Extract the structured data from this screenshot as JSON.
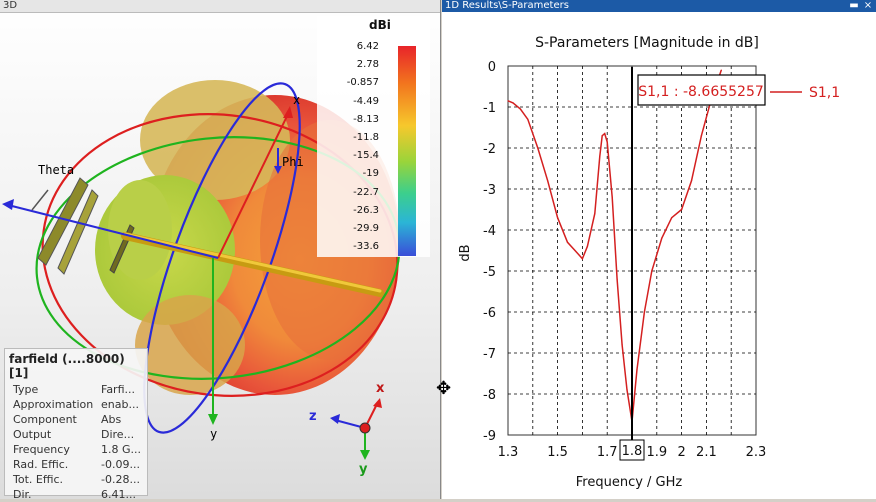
{
  "left_panel": {
    "title": "3D",
    "axis_labels": {
      "x": "x",
      "theta": "Theta",
      "phi": "Phi",
      "y": "y"
    },
    "triad_labels": {
      "x": "x",
      "y": "y",
      "z": "z"
    },
    "legend": {
      "unit": "dBi",
      "ticks": [
        "6.42",
        "2.78",
        "-0.857",
        "-4.49",
        "-8.13",
        "-11.8",
        "-15.4",
        "-19",
        "-22.7",
        "-26.3",
        "-29.9",
        "-33.6"
      ]
    },
    "info": {
      "header": "farfield (....8000) [1]",
      "rows": [
        {
          "key": "Type",
          "value": "Farfi..."
        },
        {
          "key": "Approximation",
          "value": "enab..."
        },
        {
          "key": "Component",
          "value": "Abs"
        },
        {
          "key": "Output",
          "value": "Dire..."
        },
        {
          "key": "Frequency",
          "value": "1.8 G..."
        },
        {
          "key": "Rad. Effic.",
          "value": "-0.09..."
        },
        {
          "key": "Tot. Effic.",
          "value": "-0.28..."
        },
        {
          "key": "Dir.",
          "value": "6.41..."
        }
      ]
    }
  },
  "right_panel": {
    "title": "1D Results\\S-Parameters",
    "window_buttons": {
      "minimize": "▬",
      "close": "×"
    },
    "marker_label": "S1,1 : -8.6655257",
    "marker_x_label": "1.8",
    "colors": {
      "trace": "#d42020",
      "marker": "#000000"
    }
  },
  "chart_data": {
    "type": "line",
    "title": "S-Parameters [Magnitude in dB]",
    "xlabel": "Frequency / GHz",
    "ylabel": "dB",
    "xlim": [
      1.3,
      2.3
    ],
    "ylim": [
      -9,
      0
    ],
    "x_ticks": [
      "1.3",
      "1.5",
      "1.7",
      "1.8",
      "1.9",
      "2",
      "2.1",
      "2.3"
    ],
    "y_ticks": [
      "0",
      "-1",
      "-2",
      "-3",
      "-4",
      "-5",
      "-6",
      "-7",
      "-8",
      "-9"
    ],
    "grid": true,
    "legend_position": "top-right",
    "series": [
      {
        "name": "S1,1",
        "x": [
          1.3,
          1.32,
          1.35,
          1.38,
          1.42,
          1.46,
          1.5,
          1.54,
          1.57,
          1.6,
          1.62,
          1.65,
          1.67,
          1.68,
          1.69,
          1.7,
          1.72,
          1.74,
          1.76,
          1.78,
          1.8,
          1.82,
          1.85,
          1.88,
          1.92,
          1.96,
          2.0,
          2.04,
          2.08,
          2.12,
          2.16
        ],
        "y": [
          -0.85,
          -0.9,
          -1.05,
          -1.3,
          -2.0,
          -2.8,
          -3.7,
          -4.3,
          -4.5,
          -4.7,
          -4.4,
          -3.6,
          -2.2,
          -1.7,
          -1.65,
          -1.85,
          -3.2,
          -5.2,
          -6.8,
          -7.9,
          -8.67,
          -7.4,
          -6.0,
          -5.0,
          -4.2,
          -3.7,
          -3.5,
          -2.8,
          -1.7,
          -0.8,
          -0.1
        ]
      }
    ]
  }
}
